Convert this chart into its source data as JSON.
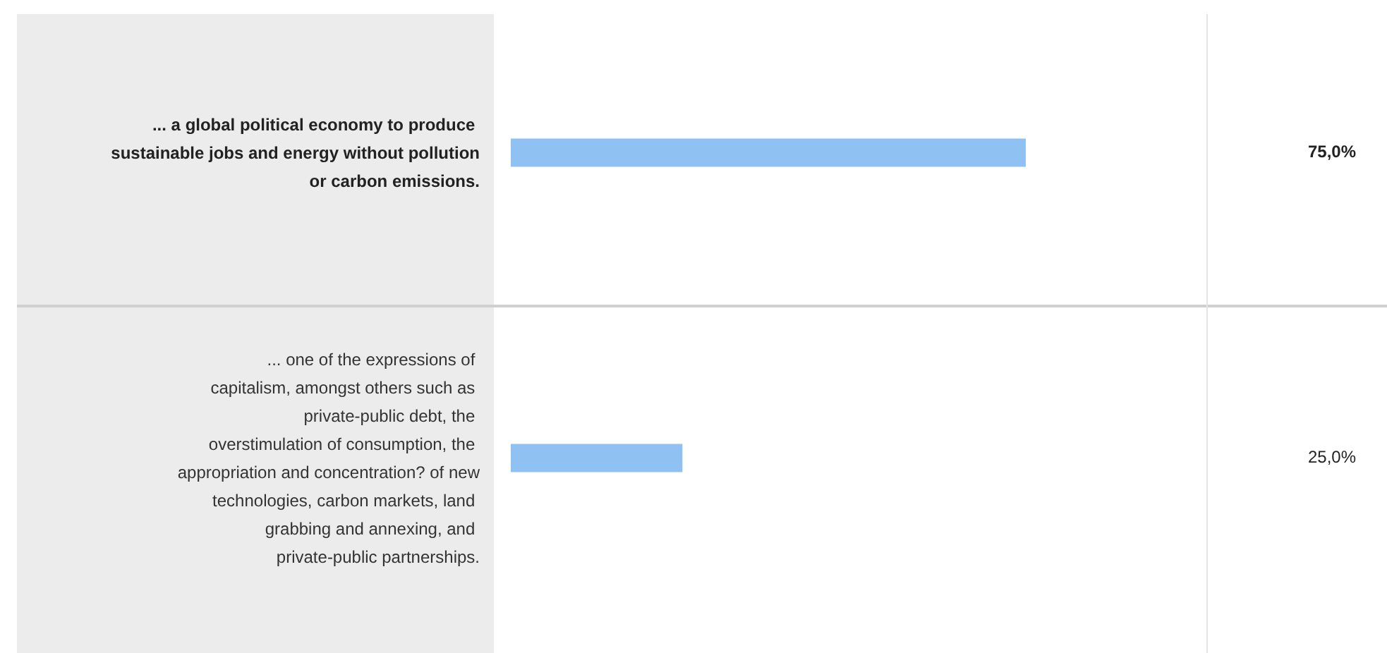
{
  "chart_data": {
    "type": "bar",
    "orientation": "horizontal",
    "categories": [
      "... a global political economy to produce sustainable jobs and energy without pollution or carbon emissions.",
      "... one of the expressions of capitalism, amongst others such as private-public debt, the overstimulation of consumption, the appropriation and concentration? of new technologies, carbon markets, land grabbing and annexing, and private-public partnerships."
    ],
    "values": [
      75,
      25
    ],
    "value_labels": [
      "75,0%",
      "25,0%"
    ],
    "color": "#8fc1f2",
    "tick_labels": "y"
  }
}
